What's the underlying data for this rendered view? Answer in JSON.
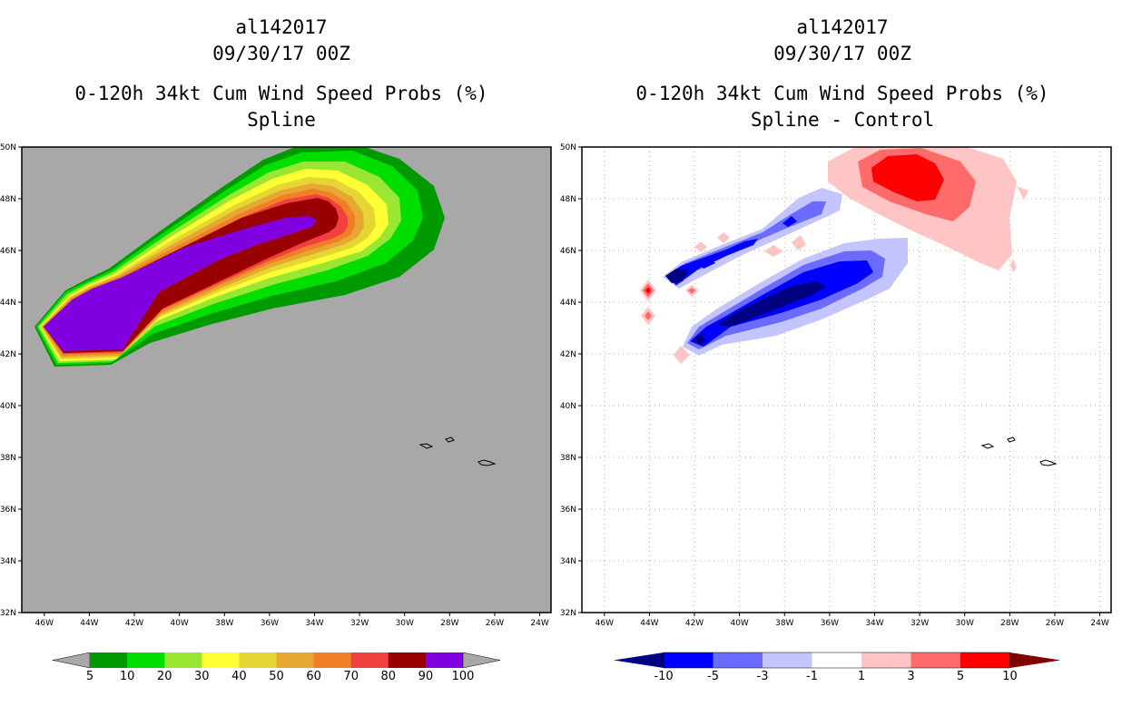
{
  "panels": [
    {
      "id": "left",
      "storm_id": "al142017",
      "datetime": "09/30/17 00Z",
      "title": "0-120h 34kt Cum Wind Speed Probs (%)",
      "subtitle": "Spline",
      "background": "#a8a8a8"
    },
    {
      "id": "right",
      "storm_id": "al142017",
      "datetime": "09/30/17 00Z",
      "title": "0-120h 34kt Cum Wind Speed Probs (%)",
      "subtitle": "Spline - Control",
      "background": "#ffffff"
    }
  ],
  "chart_data": [
    {
      "type": "heatmap",
      "title": "0-120h 34kt Cum Wind Speed Probs (%)",
      "subtitle": "Spline",
      "x_ticks": [
        "46W",
        "44W",
        "42W",
        "40W",
        "38W",
        "36W",
        "34W",
        "32W",
        "30W",
        "28W",
        "26W",
        "24W"
      ],
      "x_tick_values": [
        -46,
        -44,
        -42,
        -40,
        -38,
        -36,
        -34,
        -32,
        -30,
        -28,
        -26,
        -24
      ],
      "y_ticks": [
        "32N",
        "34N",
        "36N",
        "38N",
        "40N",
        "42N",
        "44N",
        "46N",
        "48N",
        "50N"
      ],
      "y_tick_values": [
        32,
        34,
        36,
        38,
        40,
        42,
        44,
        46,
        48,
        50
      ],
      "xlim": [
        -47,
        -23.5
      ],
      "ylim": [
        32,
        50
      ],
      "colorbar": {
        "labels": [
          "5",
          "10",
          "20",
          "30",
          "40",
          "50",
          "60",
          "70",
          "80",
          "90",
          "100"
        ],
        "colors": [
          "#009900",
          "#00dd00",
          "#99e633",
          "#ffff33",
          "#e6d633",
          "#e6a833",
          "#f08025",
          "#f04040",
          "#990000",
          "#8000e0"
        ]
      },
      "contours": [
        {
          "level": 5,
          "color": "#009900"
        },
        {
          "level": 10,
          "color": "#00dd00"
        },
        {
          "level": 20,
          "color": "#99e633"
        },
        {
          "level": 30,
          "color": "#ffff33"
        },
        {
          "level": 40,
          "color": "#e6d633"
        },
        {
          "level": 50,
          "color": "#e6a833"
        },
        {
          "level": 60,
          "color": "#f08025"
        },
        {
          "level": 70,
          "color": "#f04040"
        },
        {
          "level": 80,
          "color": "#990000"
        },
        {
          "level": 90,
          "color": "#8000e0"
        }
      ]
    },
    {
      "type": "heatmap",
      "title": "0-120h 34kt Cum Wind Speed Probs (%)",
      "subtitle": "Spline - Control",
      "x_ticks": [
        "46W",
        "44W",
        "42W",
        "40W",
        "38W",
        "36W",
        "34W",
        "32W",
        "30W",
        "28W",
        "26W",
        "24W"
      ],
      "x_tick_values": [
        -46,
        -44,
        -42,
        -40,
        -38,
        -36,
        -34,
        -32,
        -30,
        -28,
        -26,
        -24
      ],
      "y_ticks": [
        "32N",
        "34N",
        "36N",
        "38N",
        "40N",
        "42N",
        "44N",
        "46N",
        "48N",
        "50N"
      ],
      "y_tick_values": [
        32,
        34,
        36,
        38,
        40,
        42,
        44,
        46,
        48,
        50
      ],
      "xlim": [
        -47,
        -23.5
      ],
      "ylim": [
        32,
        50
      ],
      "grid": true,
      "colorbar": {
        "labels": [
          "-10",
          "-5",
          "-3",
          "-1",
          "1",
          "3",
          "5",
          "10"
        ],
        "colors": [
          "#000080",
          "#0000ff",
          "#6b6bff",
          "#c4c4ff",
          "#ffffff",
          "#ffc4c4",
          "#ff6b6b",
          "#ff0000",
          "#800000"
        ]
      },
      "contours": [
        {
          "level": -10,
          "color": "#000080"
        },
        {
          "level": -5,
          "color": "#0000ff"
        },
        {
          "level": -3,
          "color": "#6b6bff"
        },
        {
          "level": -1,
          "color": "#c4c4ff"
        },
        {
          "level": 1,
          "color": "#ffc4c4"
        },
        {
          "level": 3,
          "color": "#ff6b6b"
        },
        {
          "level": 5,
          "color": "#ff0000"
        },
        {
          "level": 10,
          "color": "#800000"
        }
      ]
    }
  ]
}
